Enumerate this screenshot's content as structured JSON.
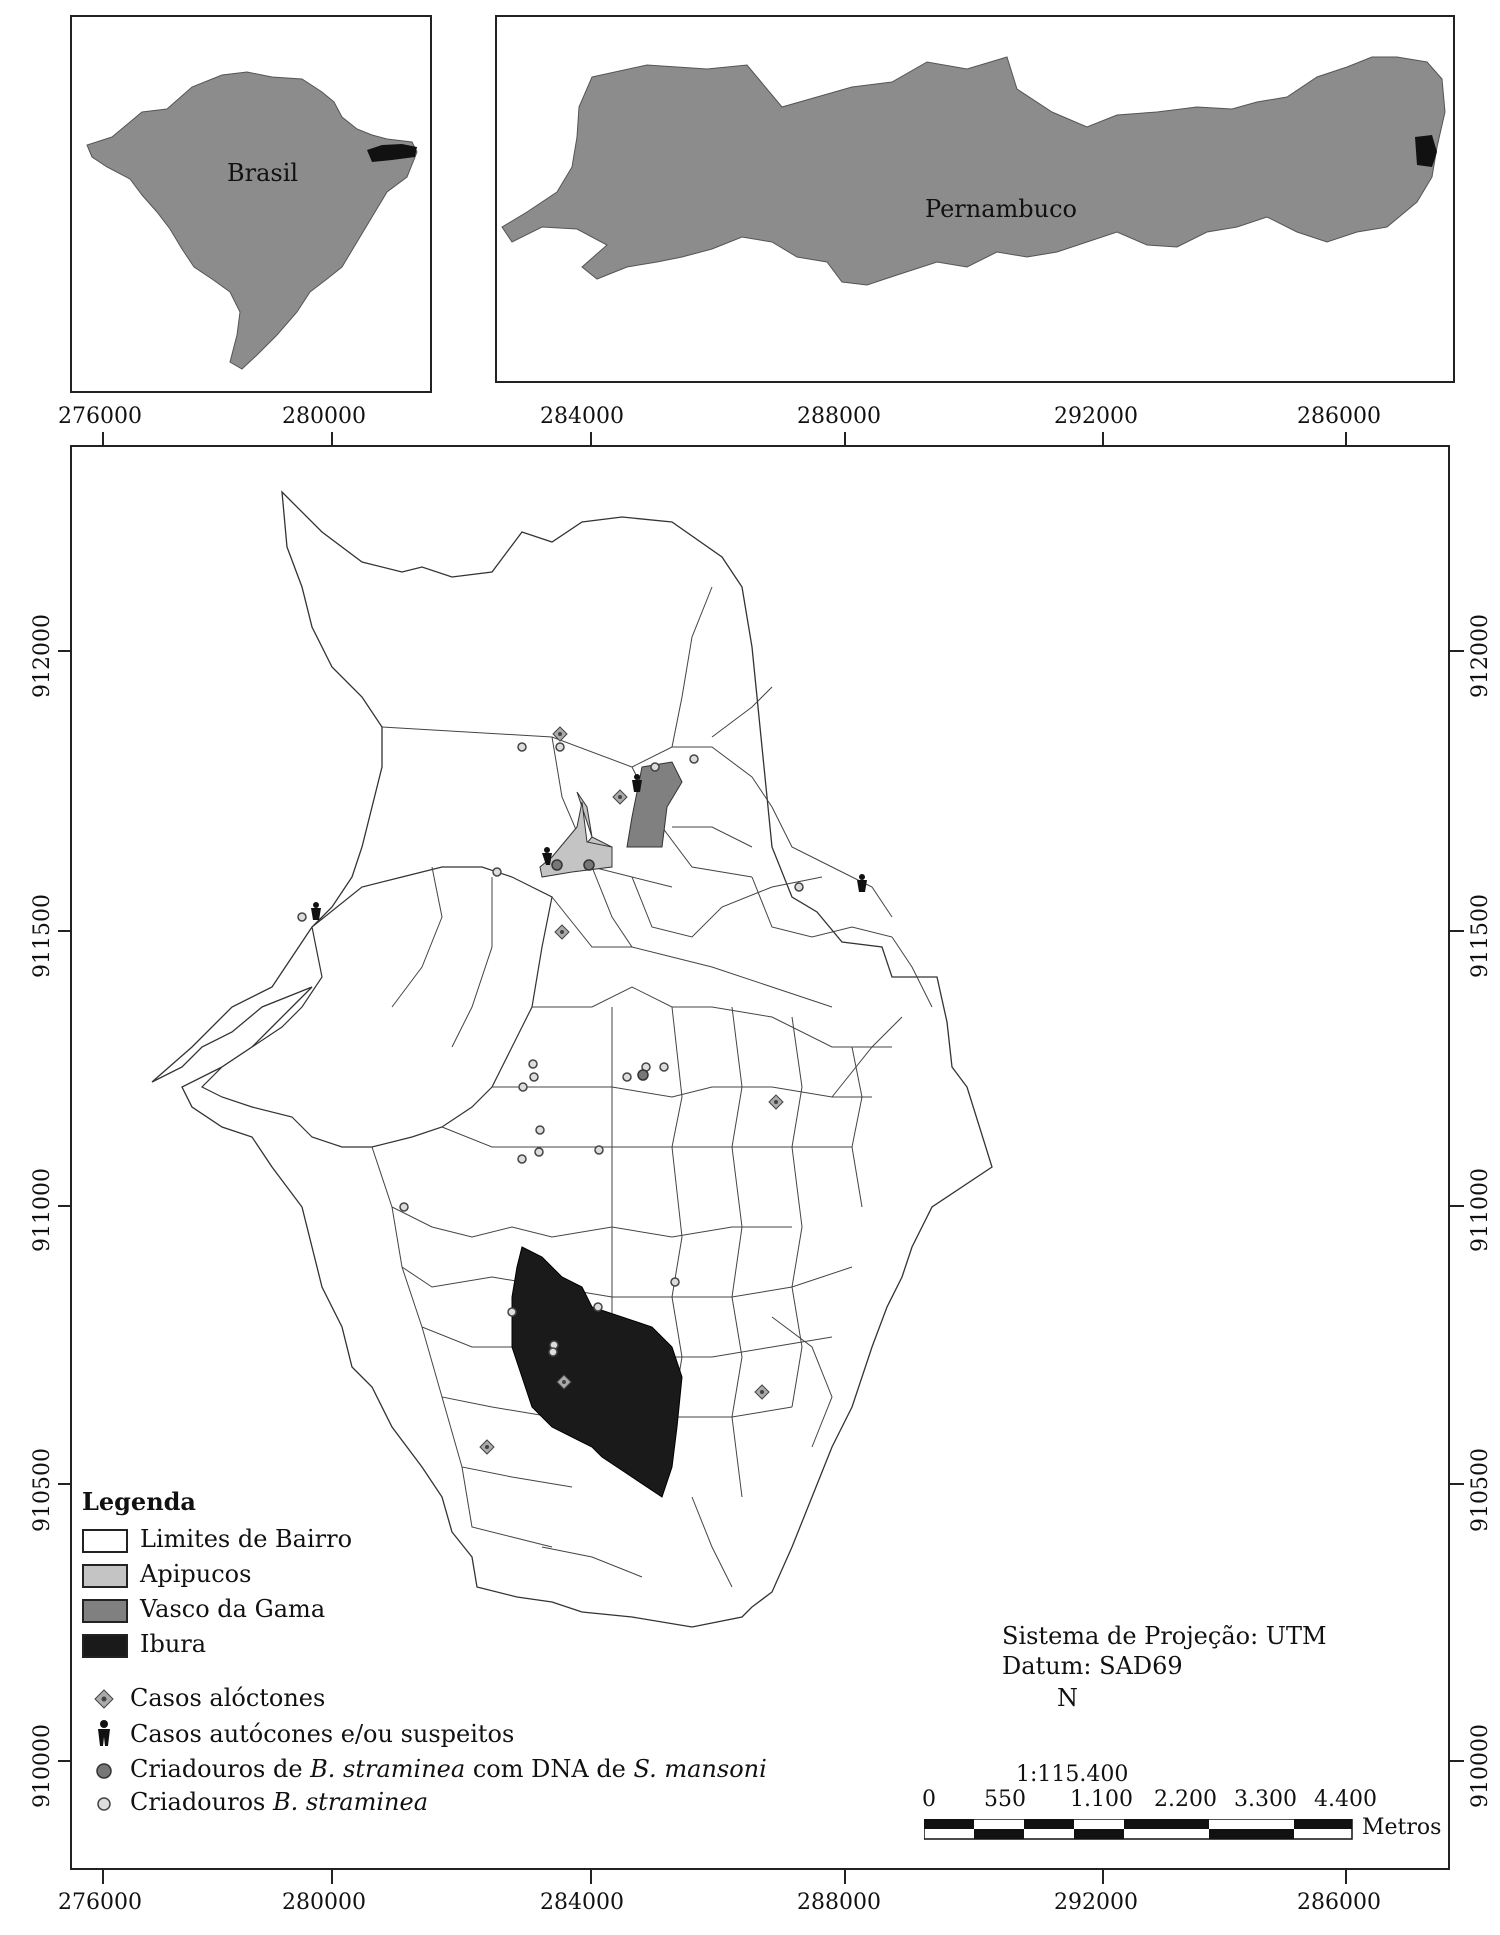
{
  "insets": {
    "brasil": {
      "label": "Brasil"
    },
    "pernambuco": {
      "label": "Pernambuco"
    }
  },
  "axes": {
    "top_x_ticks": [
      "276000",
      "280000",
      "284000",
      "288000",
      "292000",
      "286000"
    ],
    "bottom_x_ticks": [
      "276000",
      "280000",
      "284000",
      "288000",
      "292000",
      "286000"
    ],
    "left_y_ticks": [
      "912000",
      "911500",
      "911000",
      "910500",
      "910000"
    ],
    "right_y_ticks": [
      "912000",
      "911500",
      "911000",
      "910500",
      "910000"
    ]
  },
  "legend": {
    "title": "Legenda",
    "areas": [
      {
        "label": "Limites de Bairro",
        "color": "#ffffff"
      },
      {
        "label": "Apipucos",
        "color": "#c4c4c4"
      },
      {
        "label": "Vasco da Gama",
        "color": "#808080"
      },
      {
        "label": "Ibura",
        "color": "#1a1a1a"
      }
    ],
    "points": [
      {
        "label": "Casos alóctones",
        "icon": "diamond-marker-icon"
      },
      {
        "label": "Casos autócones e/ou suspeitos",
        "icon": "person-icon"
      },
      {
        "label_prefix": "Criadouros de ",
        "label_italic1": "B. straminea",
        "label_mid": " com DNA de ",
        "label_italic2": "S. mansoni",
        "icon": "filled-circle-icon"
      },
      {
        "label_prefix": "Criadouros ",
        "label_italic1": "B. straminea",
        "icon": "open-circle-icon"
      }
    ]
  },
  "projection": {
    "system": "Sistema de Projeção: UTM",
    "datum": "Datum: SAD69",
    "north": "N"
  },
  "scale": {
    "ratio": "1:115.400",
    "ticks": [
      "0",
      "550",
      "1.100",
      "2.200",
      "3.300",
      "4.400"
    ],
    "unit": "Metros"
  },
  "colors": {
    "apipucos": "#c4c4c4",
    "vasco_da_gama": "#808080",
    "ibura": "#1a1a1a",
    "region_gray": "#8c8c8c"
  }
}
